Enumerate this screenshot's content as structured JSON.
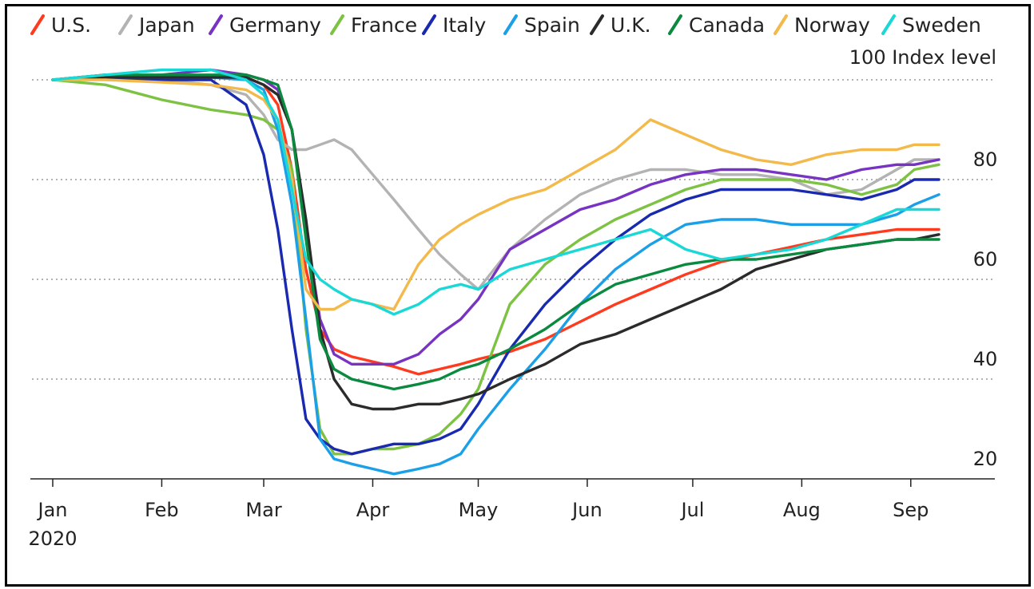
{
  "chart_data": {
    "type": "line",
    "title": "",
    "xlabel": "",
    "ylabel": "",
    "y_unit_label": "100 Index level",
    "ylim": [
      17,
      104
    ],
    "xlim": [
      0,
      252
    ],
    "y_ticks": [
      20,
      40,
      60,
      80
    ],
    "y_tick_labels": [
      "20",
      "40",
      "60",
      "80"
    ],
    "reference_line": 100,
    "grid": "horizontal dotted",
    "legend_position": "top",
    "x_ticks": [
      {
        "x": 0,
        "label": "Jan",
        "sub": "2020"
      },
      {
        "x": 31,
        "label": "Feb",
        "sub": ""
      },
      {
        "x": 60,
        "label": "Mar",
        "sub": ""
      },
      {
        "x": 91,
        "label": "Apr",
        "sub": ""
      },
      {
        "x": 121,
        "label": "May",
        "sub": ""
      },
      {
        "x": 152,
        "label": "Jun",
        "sub": ""
      },
      {
        "x": 182,
        "label": "Jul",
        "sub": ""
      },
      {
        "x": 213,
        "label": "Aug",
        "sub": ""
      },
      {
        "x": 244,
        "label": "Sep",
        "sub": ""
      }
    ],
    "series": [
      {
        "name": "U.S.",
        "color": "#ff3b1f",
        "x": [
          0,
          15,
          31,
          45,
          55,
          60,
          64,
          68,
          72,
          76,
          80,
          85,
          91,
          97,
          104,
          110,
          116,
          121,
          130,
          140,
          150,
          160,
          170,
          180,
          190,
          200,
          210,
          220,
          230,
          240,
          245,
          252
        ],
        "y": [
          100,
          101,
          100.5,
          100.5,
          100.5,
          99,
          95,
          82,
          62,
          50,
          46,
          44.5,
          43.5,
          42.5,
          41,
          42,
          43,
          44,
          45.5,
          48,
          51.5,
          55,
          58,
          61,
          63.5,
          65,
          66.5,
          68,
          69,
          70,
          70,
          70
        ]
      },
      {
        "name": "Japan",
        "color": "#b3b3b3",
        "x": [
          0,
          15,
          31,
          45,
          55,
          60,
          64,
          68,
          72,
          76,
          80,
          85,
          91,
          97,
          104,
          110,
          116,
          121,
          130,
          140,
          150,
          160,
          170,
          180,
          190,
          200,
          210,
          220,
          230,
          240,
          245,
          252
        ],
        "y": [
          100,
          100.5,
          100,
          99,
          97,
          93,
          88,
          86,
          86,
          87,
          88,
          86,
          81,
          76,
          70,
          65,
          61,
          58,
          66,
          72,
          77,
          80,
          82,
          82,
          81,
          81,
          80,
          77,
          78,
          82,
          84,
          84
        ]
      },
      {
        "name": "Germany",
        "color": "#7733c2",
        "x": [
          0,
          15,
          31,
          45,
          55,
          60,
          64,
          68,
          72,
          76,
          80,
          85,
          91,
          97,
          104,
          110,
          116,
          121,
          130,
          140,
          150,
          160,
          170,
          180,
          190,
          200,
          210,
          220,
          230,
          240,
          245,
          252
        ],
        "y": [
          100,
          100.5,
          101,
          102,
          101,
          100,
          98,
          90,
          70,
          52,
          45,
          43,
          43,
          43,
          45,
          49,
          52,
          56,
          66,
          70,
          74,
          76,
          79,
          81,
          82,
          82,
          81,
          80,
          82,
          83,
          83,
          84
        ]
      },
      {
        "name": "France",
        "color": "#7dc243",
        "x": [
          0,
          15,
          31,
          45,
          55,
          60,
          64,
          68,
          72,
          76,
          80,
          85,
          91,
          97,
          104,
          110,
          116,
          121,
          130,
          140,
          150,
          160,
          170,
          180,
          190,
          200,
          210,
          220,
          230,
          240,
          245,
          252
        ],
        "y": [
          100,
          99,
          96,
          94,
          93,
          92,
          90,
          82,
          50,
          30,
          25,
          25,
          26,
          26,
          27,
          29,
          33,
          38,
          55,
          63,
          68,
          72,
          75,
          78,
          80,
          80,
          80,
          79,
          77,
          79,
          82,
          83
        ]
      },
      {
        "name": "Italy",
        "color": "#1a2ab0",
        "x": [
          0,
          15,
          31,
          45,
          55,
          60,
          64,
          68,
          72,
          76,
          80,
          85,
          91,
          97,
          104,
          110,
          116,
          121,
          130,
          140,
          150,
          160,
          170,
          180,
          190,
          200,
          210,
          220,
          230,
          240,
          245,
          252
        ],
        "y": [
          100,
          100.5,
          100,
          100,
          95,
          85,
          70,
          50,
          32,
          28,
          26,
          25,
          26,
          27,
          27,
          28,
          30,
          35,
          46,
          55,
          62,
          68,
          73,
          76,
          78,
          78,
          78,
          77,
          76,
          78,
          80,
          80
        ]
      },
      {
        "name": "Spain",
        "color": "#1ba0e8",
        "x": [
          0,
          15,
          31,
          45,
          55,
          60,
          64,
          68,
          72,
          76,
          80,
          85,
          91,
          97,
          104,
          110,
          116,
          121,
          130,
          140,
          150,
          160,
          170,
          180,
          190,
          200,
          210,
          220,
          230,
          240,
          245,
          252
        ],
        "y": [
          100,
          100.5,
          100.5,
          100.5,
          100,
          98,
          90,
          75,
          52,
          28,
          24,
          23,
          22,
          21,
          22,
          23,
          25,
          30,
          38,
          46,
          55,
          62,
          67,
          71,
          72,
          72,
          71,
          71,
          71,
          73,
          75,
          77
        ]
      },
      {
        "name": "U.K.",
        "color": "#2b2b2b",
        "x": [
          0,
          15,
          31,
          45,
          55,
          60,
          64,
          68,
          72,
          76,
          80,
          85,
          91,
          97,
          104,
          110,
          116,
          121,
          130,
          140,
          150,
          160,
          170,
          180,
          190,
          200,
          210,
          220,
          230,
          240,
          245,
          252
        ],
        "y": [
          100,
          100.5,
          100.5,
          100.5,
          100.5,
          99,
          97,
          90,
          72,
          50,
          40,
          35,
          34,
          34,
          35,
          35,
          36,
          37,
          40,
          43,
          47,
          49,
          52,
          55,
          58,
          62,
          64,
          66,
          67,
          68,
          68,
          69
        ]
      },
      {
        "name": "Canada",
        "color": "#0b8a3f",
        "x": [
          0,
          15,
          31,
          45,
          55,
          60,
          64,
          68,
          72,
          76,
          80,
          85,
          91,
          97,
          104,
          110,
          116,
          121,
          130,
          140,
          150,
          160,
          170,
          180,
          190,
          200,
          210,
          220,
          230,
          240,
          245,
          252
        ],
        "y": [
          100,
          101,
          101,
          101,
          101,
          100,
          99,
          90,
          68,
          48,
          42,
          40,
          39,
          38,
          39,
          40,
          42,
          43,
          46,
          50,
          55,
          59,
          61,
          63,
          64,
          64,
          65,
          66,
          67,
          68,
          68,
          68
        ]
      },
      {
        "name": "Norway",
        "color": "#f3b94a",
        "x": [
          0,
          15,
          31,
          45,
          55,
          60,
          64,
          68,
          72,
          76,
          80,
          85,
          91,
          97,
          104,
          110,
          116,
          121,
          130,
          140,
          150,
          160,
          170,
          180,
          190,
          200,
          210,
          220,
          230,
          240,
          245,
          252
        ],
        "y": [
          100,
          100,
          99.5,
          99,
          98,
          96,
          92,
          80,
          58,
          54,
          54,
          56,
          55,
          54,
          63,
          68,
          71,
          73,
          76,
          78,
          82,
          86,
          92,
          89,
          86,
          84,
          83,
          85,
          86,
          86,
          87,
          87
        ]
      },
      {
        "name": "Sweden",
        "color": "#1ad8d6",
        "x": [
          0,
          15,
          31,
          45,
          55,
          60,
          64,
          68,
          72,
          76,
          80,
          85,
          91,
          97,
          104,
          110,
          116,
          121,
          130,
          140,
          150,
          160,
          170,
          180,
          190,
          200,
          210,
          220,
          230,
          240,
          245,
          252
        ],
        "y": [
          100,
          101,
          102,
          102,
          100,
          97,
          92,
          78,
          64,
          60,
          58,
          56,
          55,
          53,
          55,
          58,
          59,
          58,
          62,
          64,
          66,
          68,
          70,
          66,
          64,
          65,
          66,
          68,
          71,
          74,
          74,
          74
        ]
      }
    ]
  }
}
